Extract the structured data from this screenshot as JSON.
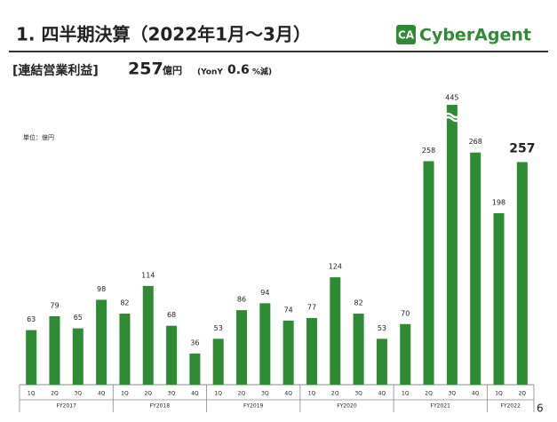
{
  "header": {
    "title": "1. 四半期決算（2022年1月〜3月）",
    "logo_mark": "CA",
    "logo": "CyberAgent",
    "page": "6",
    "metric": "[連結営業利益]",
    "headline": "257",
    "headline_unit": "億円",
    "yoy_open": "(YonY",
    "yoy_value": "0.6",
    "yoy_close": "%減)"
  },
  "chart_data": {
    "type": "bar",
    "unit_label": "単位：億円",
    "color": "#2e8b34",
    "categories": [
      "1Q",
      "2Q",
      "3Q",
      "4Q",
      "1Q",
      "2Q",
      "3Q",
      "4Q",
      "1Q",
      "2Q",
      "3Q",
      "4Q",
      "1Q",
      "2Q",
      "3Q",
      "4Q",
      "1Q",
      "2Q",
      "3Q",
      "4Q",
      "1Q",
      "2Q"
    ],
    "values": [
      63,
      79,
      65,
      98,
      82,
      114,
      68,
      36,
      53,
      86,
      94,
      74,
      77,
      124,
      82,
      53,
      70,
      258,
      445,
      268,
      198,
      257
    ],
    "groups": [
      {
        "label": "FY2017",
        "size": 4
      },
      {
        "label": "FY2018",
        "size": 4
      },
      {
        "label": "FY2019",
        "size": 4
      },
      {
        "label": "FY2020",
        "size": 4
      },
      {
        "label": "FY2021",
        "size": 4
      },
      {
        "label": "FY2022",
        "size": 2
      }
    ]
  }
}
